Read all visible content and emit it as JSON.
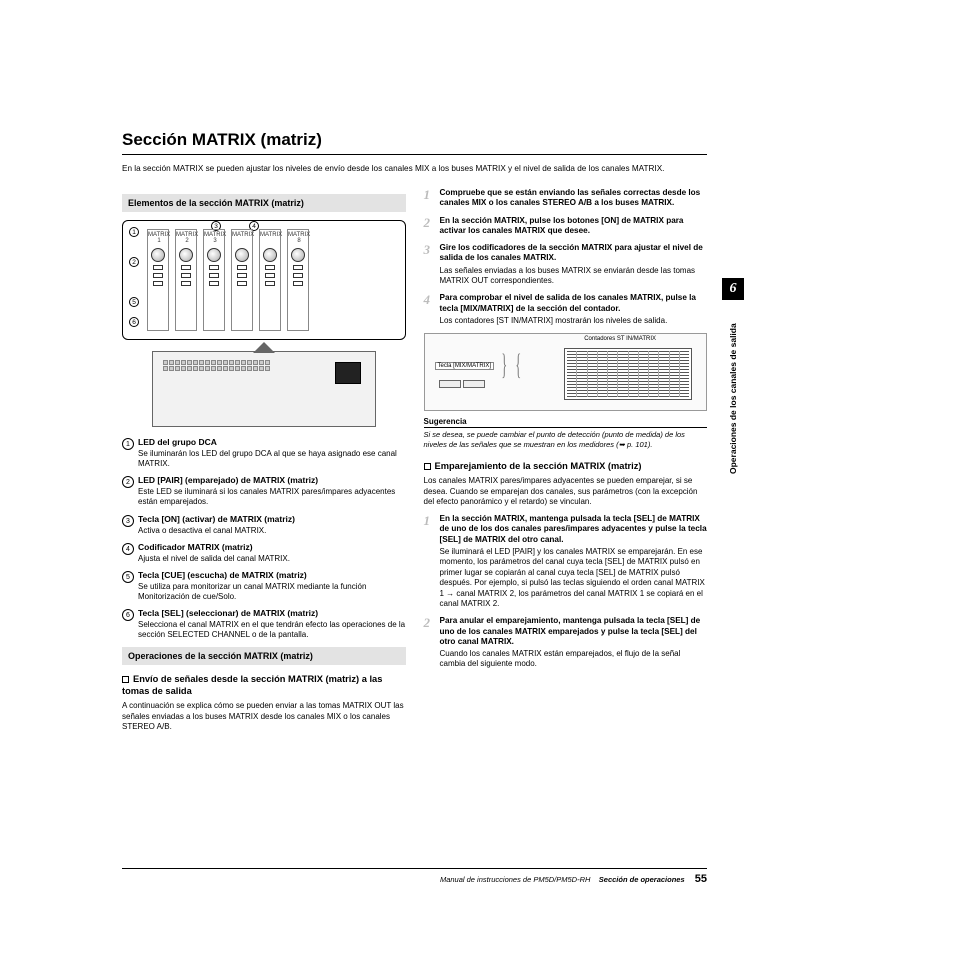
{
  "title": "Sección MATRIX (matriz)",
  "intro": "En la sección MATRIX se pueden ajustar los niveles de envío desde los canales MIX a los buses MATRIX y el nivel de salida de los canales MATRIX.",
  "bar1": "Elementos de la sección MATRIX (matriz)",
  "bar2": "Operaciones de la sección MATRIX (matriz)",
  "diagram": {
    "strip_labels": [
      "MATRIX 1",
      "MATRIX 2",
      "MATRIX 3",
      "MATRIX",
      "MATRIX",
      "MATRIX 8"
    ],
    "callouts": [
      "1",
      "2",
      "3",
      "4",
      "5",
      "6"
    ]
  },
  "defs": [
    {
      "n": "1",
      "t": "LED del grupo DCA",
      "d": "Se iluminarán los LED del grupo DCA al que se haya asignado ese canal MATRIX."
    },
    {
      "n": "2",
      "t": "LED [PAIR] (emparejado) de MATRIX (matriz)",
      "d": "Este LED se iluminará si los canales MATRIX pares/impares adyacentes están emparejados."
    },
    {
      "n": "3",
      "t": "Tecla [ON] (activar) de MATRIX (matriz)",
      "d": "Activa o desactiva el canal MATRIX."
    },
    {
      "n": "4",
      "t": "Codificador MATRIX (matriz)",
      "d": "Ajusta el nivel de salida del canal MATRIX."
    },
    {
      "n": "5",
      "t": "Tecla [CUE] (escucha) de MATRIX (matriz)",
      "d": "Se utiliza para monitorizar un canal MATRIX mediante la función Monitorización de cue/Solo."
    },
    {
      "n": "6",
      "t": "Tecla [SEL] (seleccionar) de MATRIX (matriz)",
      "d": "Selecciona el canal MATRIX en el que tendrán efecto las operaciones de la sección SELECTED CHANNEL o de la pantalla."
    }
  ],
  "envio": {
    "h": "Envío de señales desde la sección MATRIX (matriz) a las tomas de salida",
    "p": "A continuación se explica cómo se pueden enviar a las tomas MATRIX OUT las señales enviadas a los buses MATRIX desde los canales MIX o los canales STEREO A/B."
  },
  "steps_a": [
    {
      "n": "1",
      "t": "Compruebe que se están enviando las señales correctas desde los canales MIX o los canales STEREO A/B a los buses MATRIX.",
      "d": ""
    },
    {
      "n": "2",
      "t": "En la sección MATRIX, pulse los botones [ON] de MATRIX  para activar los canales MATRIX que desee.",
      "d": ""
    },
    {
      "n": "3",
      "t": "Gire los codificadores de la sección MATRIX para ajustar el nivel de salida de los canales MATRIX.",
      "d": "Las señales enviadas a los buses MATRIX se enviarán desde las tomas MATRIX OUT correspondientes."
    },
    {
      "n": "4",
      "t": "Para comprobar el nivel de salida de los canales MATRIX, pulse la tecla [MIX/MATRIX] de la sección del contador.",
      "d": "Los contadores [ST IN/MATRIX] mostrarán los niveles de salida."
    }
  ],
  "meter": {
    "top_label": "Contadores ST IN/MATRIX",
    "side_label": "Tecla [MIX/MATRIX]"
  },
  "hint": {
    "h": "Sugerencia",
    "p": "Si se desea, se puede cambiar el punto de detección (punto de medida) de los niveles de las señales que se muestran en los medidores (➥ p. 101)."
  },
  "pair": {
    "h": "Emparejamiento de la sección MATRIX (matriz)",
    "p": "Los canales MATRIX pares/impares adyacentes se pueden emparejar, si se desea. Cuando se emparejan dos canales, sus parámetros (con la excepción del efecto panorámico y el retardo) se vinculan."
  },
  "steps_b": [
    {
      "n": "1",
      "t": "En la sección MATRIX, mantenga pulsada la tecla [SEL] de MATRIX de uno de los dos canales pares/impares adyacentes y pulse la tecla [SEL] de MATRIX del otro canal.",
      "d": "Se iluminará el LED [PAIR] y los canales MATRIX se emparejarán. En ese momento, los parámetros del canal cuya tecla [SEL] de MATRIX pulsó en primer lugar se copiarán al canal cuya tecla [SEL] de MATRIX pulsó después.\nPor ejemplo, si pulsó las teclas siguiendo el orden canal MATRIX 1 → canal MATRIX 2, los parámetros del canal MATRIX 1 se copiará en el canal MATRIX 2."
    },
    {
      "n": "2",
      "t": "Para anular el emparejamiento, mantenga pulsada la tecla [SEL] de uno de los canales MATRIX emparejados y pulse la tecla [SEL] del otro canal MATRIX.",
      "d": "Cuando los canales MATRIX están emparejados, el flujo de la señal cambia del siguiente modo."
    }
  ],
  "side": {
    "chapter": "6",
    "text": "Operaciones de los canales de salida"
  },
  "footer": {
    "manual": "Manual de instrucciones de PM5D/PM5D-RH",
    "section": "Sección de operaciones",
    "page": "55"
  }
}
